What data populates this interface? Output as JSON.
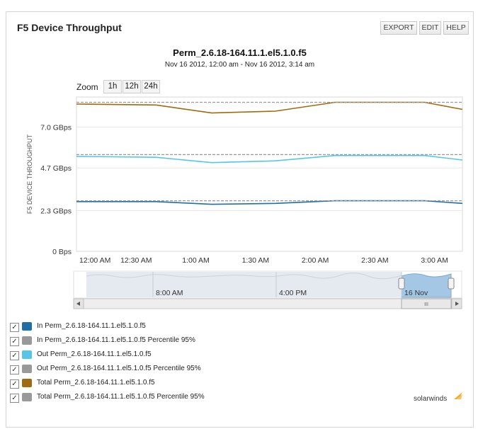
{
  "panel": {
    "title": "F5 Device Throughput",
    "buttons": {
      "export": "EXPORT",
      "edit": "EDIT",
      "help": "HELP"
    }
  },
  "chart_header": {
    "title": "Perm_2.6.18-164.11.1.el5.1.0.f5",
    "subtitle": "Nov 16 2012, 12:00 am - Nov 16 2012, 3:14 am"
  },
  "zoom": {
    "label": "Zoom",
    "options": [
      "1h",
      "12h",
      "24h"
    ]
  },
  "navigator": {
    "labels": [
      "8:00 AM",
      "4:00 PM",
      "16 Nov"
    ],
    "scroll_grip": "III"
  },
  "chart_data": {
    "type": "line",
    "ylabel": "F5 DEVICE THROUGHPUT",
    "y_ticks": [
      "0 Bps",
      "2.3 GBps",
      "4.7 GBps",
      "7.0 GBps"
    ],
    "y_tick_values": [
      0,
      2.3,
      4.7,
      7.0
    ],
    "ylim": [
      0,
      8.7
    ],
    "x_ticks": [
      "12:00 AM",
      "12:30 AM",
      "1:00 AM",
      "1:30 AM",
      "2:00 AM",
      "2:30 AM",
      "3:00 AM"
    ],
    "x_tick_minutes": [
      0,
      30,
      60,
      90,
      120,
      150,
      180
    ],
    "x_range_minutes": [
      0,
      194
    ],
    "grid": true,
    "series": [
      {
        "name": "In Perm_2.6.18-164.11.1.el5.1.0.f5",
        "color": "#1f6ea8",
        "dashed": false,
        "x": [
          0,
          40,
          68,
          100,
          130,
          150,
          175,
          194
        ],
        "y": [
          2.8,
          2.8,
          2.65,
          2.7,
          2.85,
          2.85,
          2.85,
          2.7
        ]
      },
      {
        "name": "In Perm_2.6.18-164.11.1.el5.1.0.f5 Percentile 95%",
        "color": "#999999",
        "dashed": true,
        "x": [
          0,
          194
        ],
        "y": [
          2.85,
          2.85
        ]
      },
      {
        "name": "Out Perm_2.6.18-164.11.1.el5.1.0.f5",
        "color": "#55c6e8",
        "dashed": false,
        "x": [
          0,
          40,
          68,
          100,
          130,
          150,
          175,
          194
        ],
        "y": [
          5.35,
          5.3,
          5.0,
          5.1,
          5.4,
          5.4,
          5.4,
          5.15
        ]
      },
      {
        "name": "Out Perm_2.6.18-164.11.1.el5.1.0.f5 Percentile 95%",
        "color": "#999999",
        "dashed": true,
        "x": [
          0,
          194
        ],
        "y": [
          5.45,
          5.45
        ]
      },
      {
        "name": "Total Perm_2.6.18-164.11.1.el5.1.0.f5",
        "color": "#a06a0e",
        "dashed": false,
        "x": [
          0,
          40,
          68,
          100,
          130,
          150,
          175,
          194
        ],
        "y": [
          8.3,
          8.25,
          7.8,
          7.9,
          8.4,
          8.4,
          8.4,
          8.0
        ]
      },
      {
        "name": "Total Perm_2.6.18-164.11.1.el5.1.0.f5 Percentile 95%",
        "color": "#999999",
        "dashed": true,
        "x": [
          0,
          194
        ],
        "y": [
          8.4,
          8.4
        ]
      }
    ]
  },
  "legend": [
    {
      "label": "In Perm_2.6.18-164.11.1.el5.1.0.f5",
      "color": "#1f6ea8",
      "checked": "✓"
    },
    {
      "label": "In Perm_2.6.18-164.11.1.el5.1.0.f5 Percentile 95%",
      "color": "#999999",
      "checked": "✓"
    },
    {
      "label": "Out Perm_2.6.18-164.11.1.el5.1.0.f5",
      "color": "#55c6e8",
      "checked": "✓"
    },
    {
      "label": "Out Perm_2.6.18-164.11.1.el5.1.0.f5 Percentile 95%",
      "color": "#999999",
      "checked": "✓"
    },
    {
      "label": "Total Perm_2.6.18-164.11.1.el5.1.0.f5",
      "color": "#a06a0e",
      "checked": "✓"
    },
    {
      "label": "Total Perm_2.6.18-164.11.1.el5.1.0.f5 Percentile 95%",
      "color": "#999999",
      "checked": "✓"
    }
  ],
  "brand": {
    "name": "solarwinds",
    "accent": "#f5a623"
  }
}
